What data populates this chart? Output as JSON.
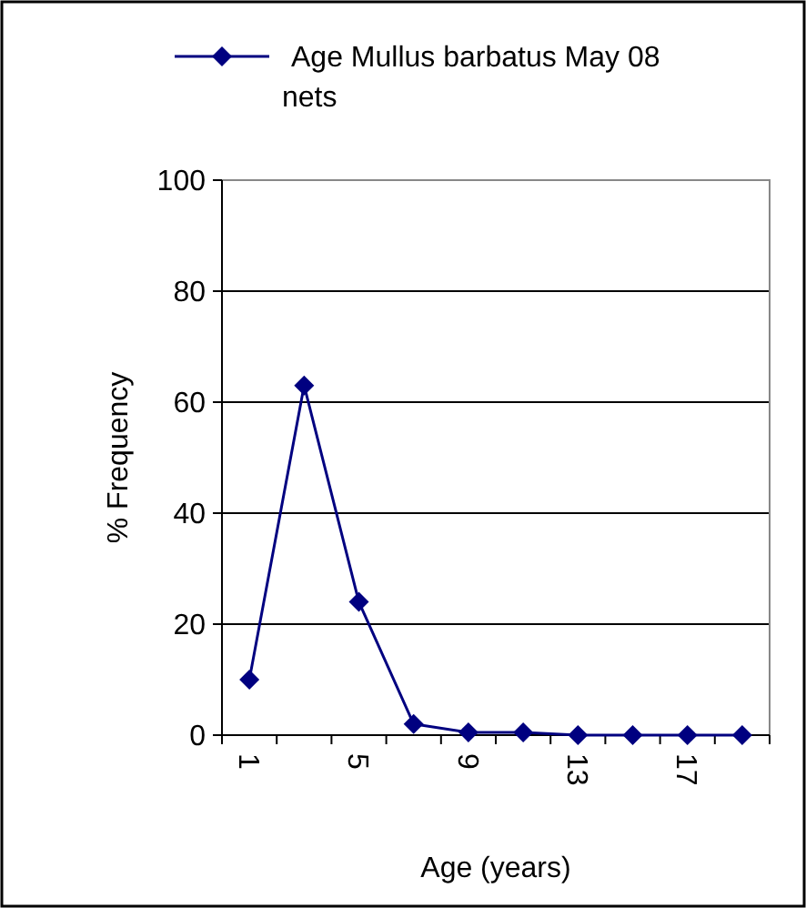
{
  "chart_data": {
    "type": "line",
    "xlabel": "Age (years)",
    "ylabel": "% Frequency",
    "categories": [
      "1",
      null,
      "5",
      null,
      "9",
      null,
      "13",
      null,
      "17",
      null
    ],
    "series": [
      {
        "name": "Age Mullus barbatus May 08 nets",
        "color": "#000080",
        "values": [
          10,
          63,
          24,
          2,
          0.5,
          0.5,
          0,
          0,
          0,
          0
        ]
      }
    ],
    "ylim": [
      0,
      100
    ],
    "yticks": [
      0,
      20,
      40,
      60,
      80,
      100
    ],
    "grid": "y",
    "legend": "top",
    "marker": "diamond",
    "line_style": "solid"
  }
}
